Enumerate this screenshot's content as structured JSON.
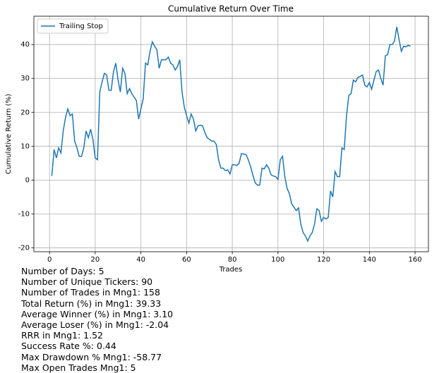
{
  "chart_data": {
    "type": "line",
    "title": "Cumulative Return Over Time",
    "xlabel": "Trades",
    "ylabel": "Cumulative Return (%)",
    "x": [
      1,
      2,
      3,
      4,
      5,
      6,
      7,
      8,
      9,
      10,
      11,
      12,
      13,
      14,
      15,
      16,
      17,
      18,
      19,
      20,
      21,
      22,
      23,
      24,
      25,
      26,
      27,
      28,
      29,
      30,
      31,
      32,
      33,
      34,
      35,
      36,
      37,
      38,
      39,
      40,
      41,
      42,
      43,
      44,
      45,
      46,
      47,
      48,
      49,
      50,
      51,
      52,
      53,
      54,
      55,
      56,
      57,
      58,
      59,
      60,
      61,
      62,
      63,
      64,
      65,
      66,
      67,
      68,
      69,
      70,
      71,
      72,
      73,
      74,
      75,
      76,
      77,
      78,
      79,
      80,
      81,
      82,
      83,
      84,
      85,
      86,
      87,
      88,
      89,
      90,
      91,
      92,
      93,
      94,
      95,
      96,
      97,
      98,
      99,
      100,
      101,
      102,
      103,
      104,
      105,
      106,
      107,
      108,
      109,
      110,
      111,
      112,
      113,
      114,
      115,
      116,
      117,
      118,
      119,
      120,
      121,
      122,
      123,
      124,
      125,
      126,
      127,
      128,
      129,
      130,
      131,
      132,
      133,
      134,
      135,
      136,
      137,
      138,
      139,
      140,
      141,
      142,
      143,
      144,
      145,
      146,
      147,
      148,
      149,
      150,
      151,
      152,
      153,
      154,
      155,
      156,
      157,
      158
    ],
    "series": [
      {
        "name": "Trailing Stop",
        "color": "#1f77b4",
        "values": [
          1.2,
          9,
          6.5,
          9.5,
          8,
          14.5,
          18.5,
          21,
          19,
          19.5,
          11.5,
          9.5,
          7,
          7,
          9.5,
          14.5,
          12.5,
          15,
          12,
          6.5,
          6,
          26,
          29,
          31.5,
          31,
          26.5,
          26.5,
          32,
          34.5,
          29.5,
          26,
          33,
          31.5,
          25.5,
          27,
          25.5,
          24.5,
          23.5,
          18,
          21,
          24,
          34.5,
          34,
          38,
          40.8,
          39.5,
          38.5,
          33,
          35.5,
          35.5,
          35.5,
          36.3,
          34.5,
          34,
          32.5,
          33.5,
          35.5,
          26,
          21.5,
          19,
          16.8,
          19.5,
          18,
          14.5,
          16,
          16.2,
          16,
          14,
          12.5,
          12,
          11.5,
          11.5,
          10.5,
          6,
          3.5,
          3.5,
          2.8,
          3,
          1.8,
          4.5,
          4.5,
          4.3,
          5,
          7.8,
          7.7,
          7.5,
          6,
          4,
          1.5,
          -0.8,
          -1.5,
          -1.5,
          3.5,
          3.3,
          4.5,
          3.5,
          1.5,
          1.2,
          1,
          0.2,
          6,
          7,
          1,
          -2.5,
          -4,
          -7,
          -8,
          -9,
          -8.2,
          -13,
          -15.5,
          -16.5,
          -18,
          -16.5,
          -15.5,
          -13,
          -8.5,
          -9,
          -12.2,
          -11,
          -11.5,
          -11,
          -3.2,
          -5,
          2.5,
          1,
          1,
          9.5,
          9,
          19,
          25,
          25.5,
          29.5,
          29,
          30.3,
          30.6,
          31,
          28,
          27.5,
          28.8,
          26.8,
          29.5,
          32,
          32.5,
          30,
          28,
          36.7,
          37,
          40,
          40,
          41,
          45.2,
          41.5,
          38,
          39.5,
          39.3,
          39.8,
          39.5
        ]
      }
    ],
    "xlim": [
      -6.85,
      165.85
    ],
    "ylim": [
      -21.16,
      48.36
    ],
    "xticks": [
      0,
      20,
      40,
      60,
      80,
      100,
      120,
      140,
      160
    ],
    "yticks": [
      -20,
      -10,
      0,
      10,
      20,
      30,
      40
    ],
    "grid": true,
    "legend": "upper left"
  },
  "summary": [
    "Number of Days: 5",
    "Number of Unique Tickers: 90",
    "Number of Trades in Mng1: 158",
    "Total Return (%) in Mng1: 39.33",
    "Average Winner (%) in Mng1: 3.10",
    "Average Loser (%) in Mng1: -2.04",
    "RRR in Mng1: 1.52",
    "Success Rate %: 0.44",
    "Max Drawdown % Mng1: -58.77",
    "Max Open Trades Mng1: 5"
  ]
}
